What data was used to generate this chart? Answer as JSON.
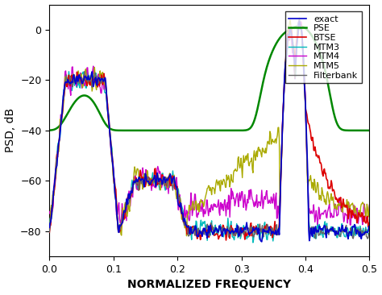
{
  "title": "",
  "xlabel": "NORMALIZED FREQUENCY",
  "ylabel": "PSD, dB",
  "xlim": [
    0,
    0.5
  ],
  "ylim": [
    -90,
    10
  ],
  "yticks": [
    -80,
    -60,
    -40,
    -20,
    0
  ],
  "xticks": [
    0,
    0.1,
    0.2,
    0.3,
    0.4,
    0.5
  ],
  "legend_labels": [
    "exact",
    "PSE",
    "BTSE",
    "MTM3",
    "MTM4",
    "MTM5",
    "Filterbank"
  ],
  "colors": {
    "exact": "#0000cc",
    "PSE": "#008800",
    "BTSE": "#dd0000",
    "MTM3": "#00bbbb",
    "MTM4": "#cc00cc",
    "MTM5": "#aaaa00",
    "Filterbank": "#666666"
  },
  "linewidths": {
    "exact": 1.2,
    "PSE": 1.8,
    "BTSE": 1.2,
    "MTM3": 1.0,
    "MTM4": 1.0,
    "MTM5": 1.0,
    "Filterbank": 1.0
  },
  "background_color": "#ffffff",
  "figsize": [
    4.74,
    3.66
  ],
  "dpi": 100
}
